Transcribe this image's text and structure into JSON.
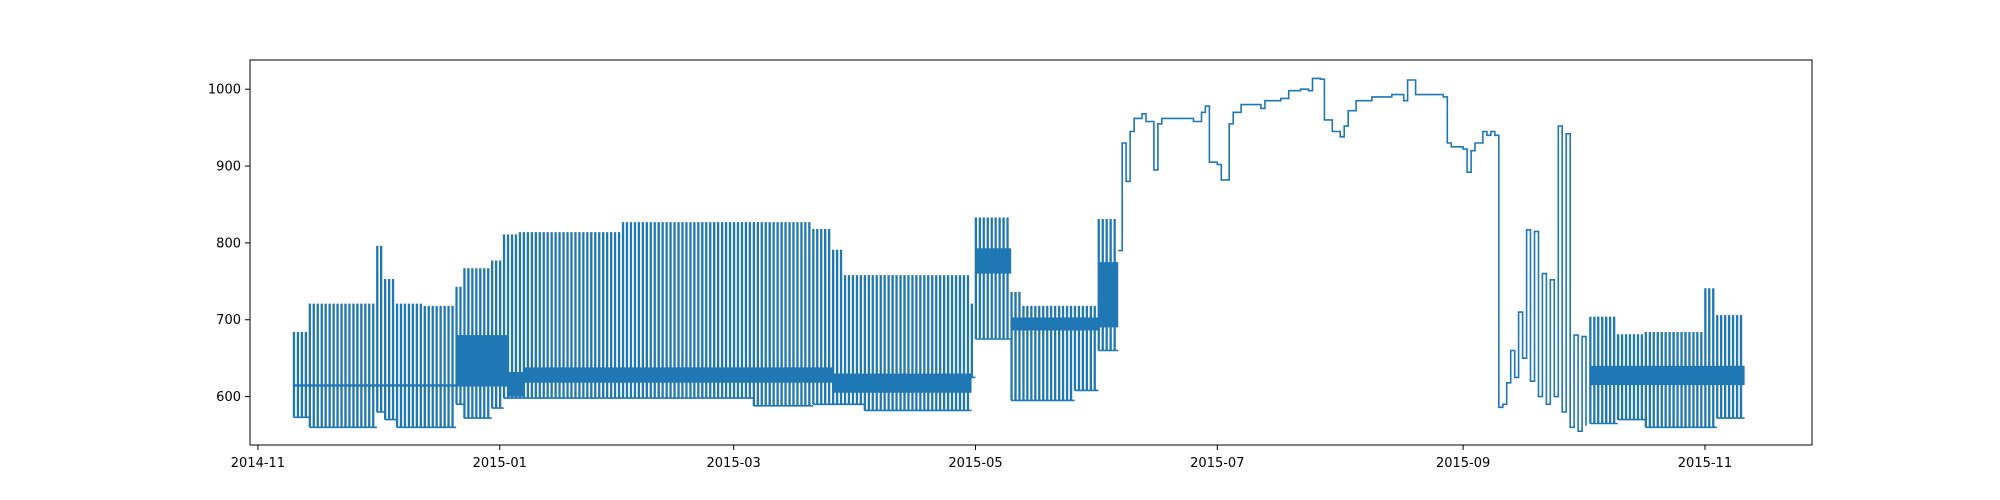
{
  "chart_data": {
    "type": "line",
    "title": "",
    "xlabel": "",
    "ylabel": "",
    "grid": false,
    "legend": "none",
    "xlim": [
      "2014-10-30",
      "2015-11-28"
    ],
    "ylim": [
      537,
      1038
    ],
    "x_ticks": [
      {
        "date": "2014-11-01",
        "label": "2014-11"
      },
      {
        "date": "2015-01-01",
        "label": "2015-01"
      },
      {
        "date": "2015-03-01",
        "label": "2015-03"
      },
      {
        "date": "2015-05-01",
        "label": "2015-05"
      },
      {
        "date": "2015-07-01",
        "label": "2015-07"
      },
      {
        "date": "2015-09-01",
        "label": "2015-09"
      },
      {
        "date": "2015-11-01",
        "label": "2015-11"
      }
    ],
    "y_ticks": [
      {
        "value": 600,
        "label": "600"
      },
      {
        "value": 700,
        "label": "700"
      },
      {
        "value": 800,
        "label": "800"
      },
      {
        "value": 900,
        "label": "900"
      },
      {
        "value": 1000,
        "label": "1000"
      }
    ],
    "series": [
      {
        "color": "#1f77b4",
        "oscillating_segments": [
          {
            "start": "2014-11-10",
            "end": "2014-11-14",
            "period_days": 1,
            "high": 683,
            "low": 573
          },
          {
            "start": "2014-11-14",
            "end": "2014-12-01",
            "period_days": 1,
            "high": 720,
            "low": 560
          },
          {
            "start": "2014-12-01",
            "end": "2014-12-03",
            "period_days": 1,
            "high": 795,
            "low": 580
          },
          {
            "start": "2014-12-03",
            "end": "2014-12-06",
            "period_days": 1,
            "high": 752,
            "low": 570
          },
          {
            "start": "2014-12-06",
            "end": "2014-12-13",
            "period_days": 1,
            "high": 720,
            "low": 560
          },
          {
            "start": "2014-12-13",
            "end": "2014-12-21",
            "period_days": 1,
            "high": 717,
            "low": 560
          },
          {
            "start": "2014-12-21",
            "end": "2014-12-23",
            "period_days": 1,
            "high": 742,
            "low": 590
          },
          {
            "start": "2014-12-23",
            "end": "2014-12-30",
            "period_days": 1,
            "high": 766,
            "low": 572
          },
          {
            "start": "2014-12-30",
            "end": "2015-01-02",
            "period_days": 1,
            "high": 776,
            "low": 585
          },
          {
            "start": "2015-01-02",
            "end": "2015-01-06",
            "period_days": 1,
            "high": 810,
            "low": 598
          },
          {
            "start": "2015-01-06",
            "end": "2015-02-01",
            "period_days": 1,
            "high": 813,
            "low": 598
          },
          {
            "start": "2015-02-01",
            "end": "2015-03-06",
            "period_days": 1,
            "high": 826,
            "low": 598
          },
          {
            "start": "2015-03-06",
            "end": "2015-03-21",
            "period_days": 1,
            "high": 826,
            "low": 588
          },
          {
            "start": "2015-03-21",
            "end": "2015-03-26",
            "period_days": 1,
            "high": 817,
            "low": 590
          },
          {
            "start": "2015-03-26",
            "end": "2015-03-29",
            "period_days": 1,
            "high": 790,
            "low": 590
          },
          {
            "start": "2015-03-29",
            "end": "2015-04-03",
            "period_days": 1,
            "high": 757,
            "low": 590
          },
          {
            "start": "2015-04-03",
            "end": "2015-04-30",
            "period_days": 1,
            "high": 757,
            "low": 582
          },
          {
            "start": "2015-04-30",
            "end": "2015-05-01",
            "period_days": 1,
            "high": 720,
            "low": 625
          },
          {
            "start": "2015-05-01",
            "end": "2015-05-10",
            "period_days": 1,
            "high": 832,
            "low": 675
          },
          {
            "start": "2015-05-10",
            "end": "2015-05-13",
            "period_days": 1,
            "high": 735,
            "low": 595
          },
          {
            "start": "2015-05-13",
            "end": "2015-05-26",
            "period_days": 1,
            "high": 717,
            "low": 595
          },
          {
            "start": "2015-05-26",
            "end": "2015-06-01",
            "period_days": 1,
            "high": 717,
            "low": 608
          },
          {
            "start": "2015-06-01",
            "end": "2015-06-06",
            "period_days": 1,
            "high": 830,
            "low": 660
          },
          {
            "start": "2015-10-03",
            "end": "2015-10-10",
            "period_days": 1,
            "high": 703,
            "low": 565
          },
          {
            "start": "2015-10-10",
            "end": "2015-10-17",
            "period_days": 1,
            "high": 680,
            "low": 570
          },
          {
            "start": "2015-10-17",
            "end": "2015-11-01",
            "period_days": 1,
            "high": 683,
            "low": 560
          },
          {
            "start": "2015-11-01",
            "end": "2015-11-04",
            "period_days": 1,
            "high": 740,
            "low": 560
          },
          {
            "start": "2015-11-04",
            "end": "2015-11-11",
            "period_days": 1,
            "high": 705,
            "low": 572
          }
        ],
        "inner_band_segments": [
          {
            "start": "2014-11-10",
            "end": "2014-12-21",
            "high": 616,
            "low": 613
          },
          {
            "start": "2014-12-21",
            "end": "2015-01-03",
            "high": 680,
            "low": 613
          },
          {
            "start": "2015-01-03",
            "end": "2015-01-07",
            "high": 632,
            "low": 600
          },
          {
            "start": "2015-01-07",
            "end": "2015-03-26",
            "high": 638,
            "low": 618
          },
          {
            "start": "2015-03-26",
            "end": "2015-04-30",
            "high": 630,
            "low": 605
          },
          {
            "start": "2015-05-01",
            "end": "2015-05-10",
            "high": 793,
            "low": 760
          },
          {
            "start": "2015-05-10",
            "end": "2015-06-01",
            "high": 703,
            "low": 686
          },
          {
            "start": "2015-06-01",
            "end": "2015-06-06",
            "high": 775,
            "low": 690
          },
          {
            "start": "2015-10-03",
            "end": "2015-11-11",
            "high": 640,
            "low": 615
          }
        ],
        "points": [
          [
            "2015-06-06",
            790
          ],
          [
            "2015-06-07",
            930
          ],
          [
            "2015-06-08",
            880
          ],
          [
            "2015-06-09",
            945
          ],
          [
            "2015-06-10",
            962
          ],
          [
            "2015-06-12",
            968
          ],
          [
            "2015-06-13",
            958
          ],
          [
            "2015-06-15",
            895
          ],
          [
            "2015-06-16",
            955
          ],
          [
            "2015-06-17",
            962
          ],
          [
            "2015-06-25",
            958
          ],
          [
            "2015-06-27",
            970
          ],
          [
            "2015-06-28",
            978
          ],
          [
            "2015-06-29",
            905
          ],
          [
            "2015-07-01",
            902
          ],
          [
            "2015-07-02",
            882
          ],
          [
            "2015-07-04",
            955
          ],
          [
            "2015-07-05",
            970
          ],
          [
            "2015-07-07",
            980
          ],
          [
            "2015-07-12",
            975
          ],
          [
            "2015-07-13",
            985
          ],
          [
            "2015-07-17",
            988
          ],
          [
            "2015-07-19",
            998
          ],
          [
            "2015-07-22",
            1000
          ],
          [
            "2015-07-24",
            998
          ],
          [
            "2015-07-25",
            1014
          ],
          [
            "2015-07-27",
            1013
          ],
          [
            "2015-07-28",
            960
          ],
          [
            "2015-07-30",
            945
          ],
          [
            "2015-08-01",
            938
          ],
          [
            "2015-08-02",
            952
          ],
          [
            "2015-08-03",
            972
          ],
          [
            "2015-08-05",
            985
          ],
          [
            "2015-08-09",
            990
          ],
          [
            "2015-08-14",
            993
          ],
          [
            "2015-08-17",
            985
          ],
          [
            "2015-08-18",
            1012
          ],
          [
            "2015-08-20",
            993
          ],
          [
            "2015-08-27",
            990
          ],
          [
            "2015-08-28",
            930
          ],
          [
            "2015-08-29",
            925
          ],
          [
            "2015-09-01",
            922
          ],
          [
            "2015-09-02",
            892
          ],
          [
            "2015-09-03",
            920
          ],
          [
            "2015-09-04",
            930
          ],
          [
            "2015-09-06",
            945
          ],
          [
            "2015-09-07",
            940
          ],
          [
            "2015-09-08",
            945
          ],
          [
            "2015-09-09",
            940
          ],
          [
            "2015-09-10",
            586
          ],
          [
            "2015-09-11",
            590
          ],
          [
            "2015-09-12",
            618
          ],
          [
            "2015-09-13",
            660
          ],
          [
            "2015-09-14",
            625
          ],
          [
            "2015-09-15",
            710
          ],
          [
            "2015-09-16",
            650
          ],
          [
            "2015-09-17",
            817
          ],
          [
            "2015-09-18",
            620
          ],
          [
            "2015-09-19",
            815
          ],
          [
            "2015-09-20",
            600
          ],
          [
            "2015-09-21",
            760
          ],
          [
            "2015-09-22",
            590
          ],
          [
            "2015-09-23",
            752
          ],
          [
            "2015-09-24",
            600
          ],
          [
            "2015-09-25",
            952
          ],
          [
            "2015-09-26",
            580
          ],
          [
            "2015-09-27",
            942
          ],
          [
            "2015-09-28",
            560
          ],
          [
            "2015-09-29",
            680
          ],
          [
            "2015-09-30",
            555
          ],
          [
            "2015-10-01",
            678
          ],
          [
            "2015-10-02",
            562
          ]
        ]
      }
    ]
  }
}
